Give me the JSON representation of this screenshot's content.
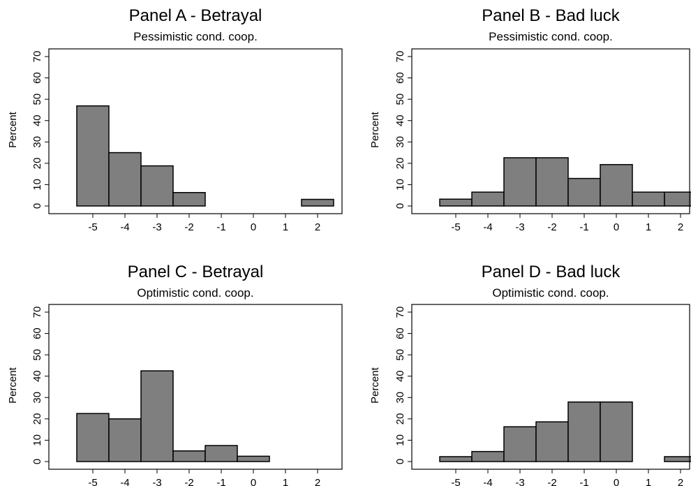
{
  "chart_data": [
    {
      "type": "bar",
      "title": "Panel A - Betrayal",
      "subtitle": "Pessimistic cond. coop.",
      "ylabel": "Percent",
      "xlabel": "",
      "ylim": [
        0,
        70
      ],
      "yticks": [
        0,
        10,
        20,
        30,
        40,
        50,
        60,
        70
      ],
      "xticks": [
        -5,
        -4,
        -3,
        -2,
        -1,
        0,
        1,
        2
      ],
      "categories": [
        -5,
        -4,
        -3,
        -2,
        -1,
        0,
        1,
        2
      ],
      "values": [
        46.9,
        25.0,
        18.8,
        6.3,
        0,
        0,
        0,
        3.1
      ],
      "grid": false,
      "bar_color": "#7f7f7f"
    },
    {
      "type": "bar",
      "title": "Panel B - Bad luck",
      "subtitle": "Pessimistic cond. coop.",
      "ylabel": "Percent",
      "xlabel": "",
      "ylim": [
        0,
        70
      ],
      "yticks": [
        0,
        10,
        20,
        30,
        40,
        50,
        60,
        70
      ],
      "xticks": [
        -5,
        -4,
        -3,
        -2,
        -1,
        0,
        1,
        2
      ],
      "categories": [
        -5,
        -4,
        -3,
        -2,
        -1,
        0,
        1,
        2
      ],
      "values": [
        3.2,
        6.5,
        22.6,
        22.6,
        12.9,
        19.4,
        6.5,
        6.5
      ],
      "grid": false,
      "bar_color": "#7f7f7f"
    },
    {
      "type": "bar",
      "title": "Panel C - Betrayal",
      "subtitle": "Optimistic cond. coop.",
      "ylabel": "Percent",
      "xlabel": "",
      "ylim": [
        0,
        70
      ],
      "yticks": [
        0,
        10,
        20,
        30,
        40,
        50,
        60,
        70
      ],
      "xticks": [
        -5,
        -4,
        -3,
        -2,
        -1,
        0,
        1,
        2
      ],
      "categories": [
        -5,
        -4,
        -3,
        -2,
        -1,
        0,
        1,
        2
      ],
      "values": [
        22.5,
        20.0,
        42.5,
        5.0,
        7.5,
        2.5,
        0,
        0
      ],
      "grid": false,
      "bar_color": "#7f7f7f"
    },
    {
      "type": "bar",
      "title": "Panel D - Bad luck",
      "subtitle": "Optimistic cond. coop.",
      "ylabel": "Percent",
      "xlabel": "",
      "ylim": [
        0,
        70
      ],
      "yticks": [
        0,
        10,
        20,
        30,
        40,
        50,
        60,
        70
      ],
      "xticks": [
        -5,
        -4,
        -3,
        -2,
        -1,
        0,
        1,
        2
      ],
      "categories": [
        -5,
        -4,
        -3,
        -2,
        -1,
        0,
        1,
        2
      ],
      "values": [
        2.3,
        4.7,
        16.3,
        18.6,
        27.9,
        27.9,
        0,
        2.3
      ],
      "grid": false,
      "bar_color": "#7f7f7f"
    }
  ]
}
